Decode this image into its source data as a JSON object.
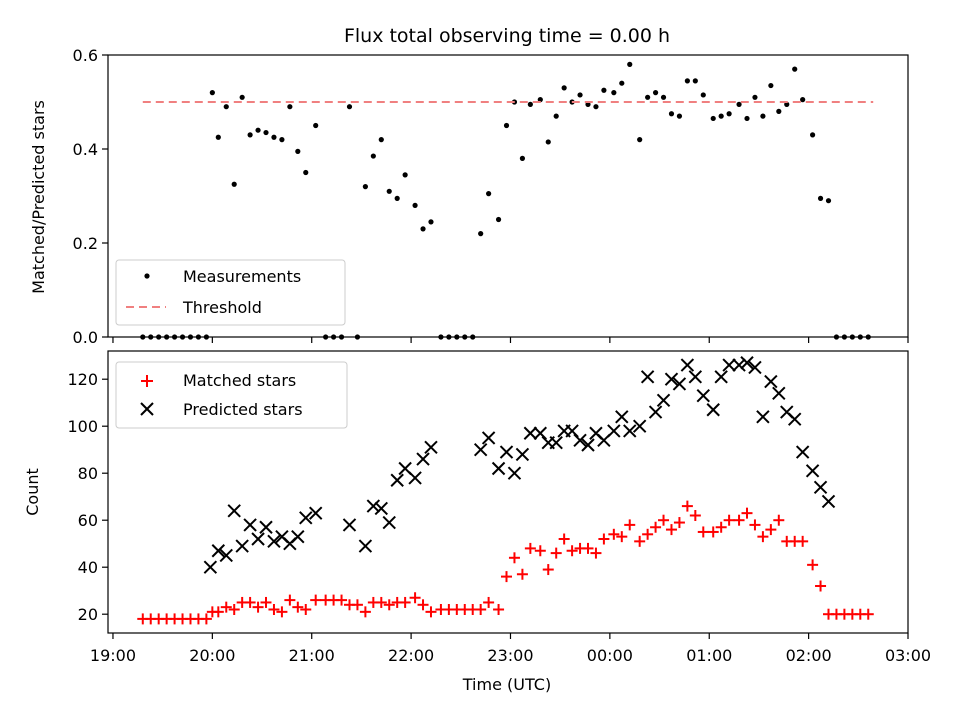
{
  "chart_data": [
    {
      "type": "scatter",
      "title": "Flux total observing time = 0.00 h",
      "xlabel": "",
      "ylabel": "Matched/Predicted stars",
      "xlim_hours": [
        18.95,
        27.0
      ],
      "ylim": [
        0,
        0.6
      ],
      "yticks": [
        0.0,
        0.2,
        0.4,
        0.6
      ],
      "yticks_text": [
        "0.0",
        "0.2",
        "0.4",
        "0.6"
      ],
      "legend_placement": "lower-left",
      "threshold": {
        "name": "Threshold",
        "y": 0.5,
        "x_range_hours": [
          19.3,
          26.65
        ],
        "color": "#f08080",
        "style": "dashed"
      },
      "series": [
        {
          "name": "Measurements",
          "color": "#000000",
          "marker": "dot",
          "x_hours": [
            19.3,
            19.38,
            19.46,
            19.54,
            19.62,
            19.7,
            19.78,
            19.86,
            19.94,
            20.0,
            20.06,
            20.14,
            20.22,
            20.3,
            20.38,
            20.46,
            20.54,
            20.62,
            20.7,
            20.78,
            20.86,
            20.94,
            21.04,
            21.14,
            21.22,
            21.3,
            21.38,
            21.46,
            21.54,
            21.62,
            21.7,
            21.78,
            21.86,
            21.94,
            22.04,
            22.12,
            22.2,
            22.3,
            22.38,
            22.46,
            22.54,
            22.62,
            22.7,
            22.78,
            22.88,
            22.96,
            23.04,
            23.12,
            23.2,
            23.3,
            23.38,
            23.46,
            23.54,
            23.62,
            23.7,
            23.78,
            23.86,
            23.94,
            24.04,
            24.12,
            24.2,
            24.3,
            24.38,
            24.46,
            24.54,
            24.62,
            24.7,
            24.78,
            24.86,
            24.94,
            25.04,
            25.12,
            25.2,
            25.3,
            25.38,
            25.46,
            25.54,
            25.62,
            25.7,
            25.78,
            25.86,
            25.94,
            26.04,
            26.12,
            26.2,
            26.28,
            26.36,
            26.44,
            26.52,
            26.6
          ],
          "y": [
            0.0,
            0.0,
            0.0,
            0.0,
            0.0,
            0.0,
            0.0,
            0.0,
            0.0,
            0.52,
            0.425,
            0.49,
            0.325,
            0.51,
            0.43,
            0.44,
            0.435,
            0.425,
            0.42,
            0.49,
            0.395,
            0.35,
            0.45,
            0.0,
            0.0,
            0.0,
            0.49,
            0.0,
            0.32,
            0.385,
            0.42,
            0.31,
            0.295,
            0.345,
            0.28,
            0.23,
            0.245,
            0.0,
            0.0,
            0.0,
            0.0,
            0.0,
            0.22,
            0.305,
            0.25,
            0.45,
            0.5,
            0.38,
            0.495,
            0.505,
            0.415,
            0.47,
            0.53,
            0.5,
            0.515,
            0.495,
            0.49,
            0.525,
            0.52,
            0.54,
            0.58,
            0.42,
            0.51,
            0.52,
            0.51,
            0.475,
            0.47,
            0.545,
            0.545,
            0.515,
            0.465,
            0.47,
            0.475,
            0.495,
            0.465,
            0.51,
            0.47,
            0.535,
            0.48,
            0.495,
            0.57,
            0.505,
            0.43,
            0.295,
            0.29,
            0.0,
            0.0,
            0.0,
            0.0,
            0.0
          ]
        }
      ]
    },
    {
      "type": "scatter",
      "xlabel": "Time (UTC)",
      "ylabel": "Count",
      "xlim_hours": [
        18.95,
        27.0
      ],
      "xticks_hours": [
        19,
        20,
        21,
        22,
        23,
        24,
        25,
        26,
        27
      ],
      "xticks_text": [
        "19:00",
        "20:00",
        "21:00",
        "22:00",
        "23:00",
        "00:00",
        "01:00",
        "02:00",
        "03:00"
      ],
      "ylim": [
        12,
        132
      ],
      "yticks": [
        20,
        40,
        60,
        80,
        100,
        120
      ],
      "yticks_text": [
        "20",
        "40",
        "60",
        "80",
        "100",
        "120"
      ],
      "legend_placement": "upper-left",
      "series": [
        {
          "name": "Matched stars",
          "color": "#ff0000",
          "marker": "plus",
          "x_hours": [
            19.3,
            19.38,
            19.46,
            19.54,
            19.62,
            19.7,
            19.78,
            19.86,
            19.94,
            20.0,
            20.06,
            20.14,
            20.22,
            20.3,
            20.38,
            20.46,
            20.54,
            20.62,
            20.7,
            20.78,
            20.86,
            20.94,
            21.04,
            21.14,
            21.22,
            21.3,
            21.38,
            21.46,
            21.54,
            21.62,
            21.7,
            21.78,
            21.86,
            21.94,
            22.04,
            22.12,
            22.2,
            22.3,
            22.38,
            22.46,
            22.54,
            22.62,
            22.7,
            22.78,
            22.88,
            22.96,
            23.04,
            23.12,
            23.2,
            23.3,
            23.38,
            23.46,
            23.54,
            23.62,
            23.7,
            23.78,
            23.86,
            23.94,
            24.04,
            24.12,
            24.2,
            24.3,
            24.38,
            24.46,
            24.54,
            24.62,
            24.7,
            24.78,
            24.86,
            24.94,
            25.04,
            25.12,
            25.2,
            25.3,
            25.38,
            25.46,
            25.54,
            25.62,
            25.7,
            25.78,
            25.86,
            25.94,
            26.04,
            26.12,
            26.2,
            26.28,
            26.36,
            26.44,
            26.52,
            26.6
          ],
          "y": [
            18,
            18,
            18,
            18,
            18,
            18,
            18,
            18,
            18,
            21,
            21,
            23,
            22,
            25,
            25,
            23,
            25,
            22,
            21,
            26,
            23,
            22,
            26,
            26,
            26,
            26,
            24,
            24,
            21,
            25,
            25,
            24,
            25,
            25,
            27,
            24,
            21,
            22,
            22,
            22,
            22,
            22,
            22,
            25,
            22,
            36,
            44,
            37,
            48,
            47,
            39,
            46,
            52,
            47,
            48,
            48,
            46,
            52,
            54,
            53,
            58,
            51,
            54,
            57,
            60,
            56,
            59,
            66,
            62,
            55,
            55,
            57,
            60,
            60,
            63,
            58,
            53,
            56,
            60,
            51,
            51,
            51,
            41,
            32,
            20,
            20,
            20,
            20,
            20,
            20
          ]
        },
        {
          "name": "Predicted stars",
          "color": "#000000",
          "marker": "cross",
          "x_hours": [
            19.98,
            20.06,
            20.14,
            20.22,
            20.3,
            20.38,
            20.46,
            20.54,
            20.62,
            20.7,
            20.78,
            20.86,
            20.94,
            21.04,
            21.38,
            21.54,
            21.62,
            21.7,
            21.78,
            21.86,
            21.94,
            22.04,
            22.12,
            22.2,
            22.7,
            22.78,
            22.88,
            22.96,
            23.04,
            23.12,
            23.2,
            23.3,
            23.38,
            23.46,
            23.54,
            23.62,
            23.7,
            23.78,
            23.86,
            23.94,
            24.04,
            24.12,
            24.2,
            24.3,
            24.38,
            24.46,
            24.54,
            24.62,
            24.7,
            24.78,
            24.86,
            24.94,
            25.04,
            25.12,
            25.2,
            25.3,
            25.38,
            25.46,
            25.54,
            25.62,
            25.7,
            25.78,
            25.86,
            25.94,
            26.04,
            26.12,
            26.2
          ],
          "y": [
            40,
            47,
            45,
            64,
            49,
            58,
            52,
            57,
            51,
            53,
            50,
            53,
            61,
            63,
            58,
            49,
            66,
            65,
            59,
            77,
            82,
            78,
            86,
            91,
            90,
            95,
            82,
            89,
            80,
            88,
            97,
            97,
            93,
            93,
            98,
            98,
            94,
            92,
            97,
            94,
            98,
            104,
            98,
            100,
            121,
            106,
            111,
            120,
            118,
            126,
            121,
            113,
            107,
            121,
            126,
            126,
            127,
            125,
            104,
            119,
            114,
            106,
            103,
            89,
            81,
            74,
            68
          ]
        }
      ]
    }
  ]
}
